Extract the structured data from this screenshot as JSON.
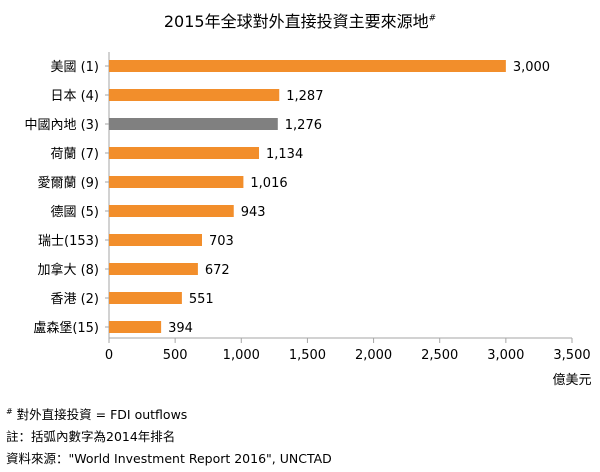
{
  "chart_data": {
    "type": "bar",
    "orientation": "horizontal",
    "title": "2015年全球對外直接投資主要來源地",
    "title_mark": "#",
    "categories": [
      "美國 (1)",
      "日本 (4)",
      "中國內地 (3)",
      "荷蘭 (7)",
      "愛爾蘭 (9)",
      "德國 (5)",
      "瑞士(153)",
      "加拿大 (8)",
      "香港 (2)",
      "盧森堡(15)"
    ],
    "values": [
      3000,
      1287,
      1276,
      1134,
      1016,
      943,
      703,
      672,
      551,
      394
    ],
    "value_labels": [
      "3,000",
      "1,287",
      "1,276",
      "1,134",
      "1,016",
      "943",
      "703",
      "672",
      "551",
      "394"
    ],
    "highlight_index": 2,
    "xlim": [
      0,
      3500
    ],
    "xticks": [
      0,
      500,
      1000,
      1500,
      2000,
      2500,
      3000,
      3500
    ],
    "xtick_labels": [
      "0",
      "500",
      "1,000",
      "1,500",
      "2,000",
      "2,500",
      "3,000",
      "3,500"
    ],
    "xlabel": "億美元",
    "colors": {
      "bar": "#F28E2B",
      "highlight": "#808080",
      "axis": "#A6A6A6"
    },
    "grid": false,
    "legend": "none"
  },
  "notes": {
    "note1_mark": "#",
    "note1": " 對外直接投資 = FDI outflows",
    "note2": "註：括弧內數字為2014年排名",
    "note3": "資料來源：\"World Investment Report 2016\", UNCTAD"
  }
}
